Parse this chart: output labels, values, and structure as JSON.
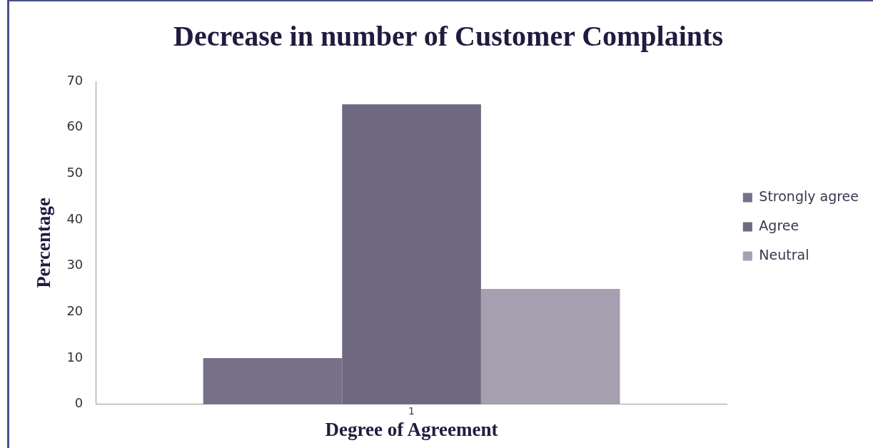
{
  "chart_data": {
    "type": "bar",
    "title": "Decrease in number of Customer Complaints",
    "xlabel": "Degree of Agreement",
    "ylabel": "Percentage",
    "categories": [
      "1"
    ],
    "series": [
      {
        "name": "Strongly agree",
        "color": "#787087",
        "values": [
          10
        ]
      },
      {
        "name": "Agree",
        "color": "#6e6880",
        "values": [
          65
        ]
      },
      {
        "name": "Neutral",
        "color": "#a69fb0",
        "values": [
          25
        ]
      }
    ],
    "ylim": [
      0,
      70
    ],
    "yticks": [
      0,
      10,
      20,
      30,
      40,
      50,
      60,
      70
    ],
    "grid": false,
    "legend": "right"
  }
}
